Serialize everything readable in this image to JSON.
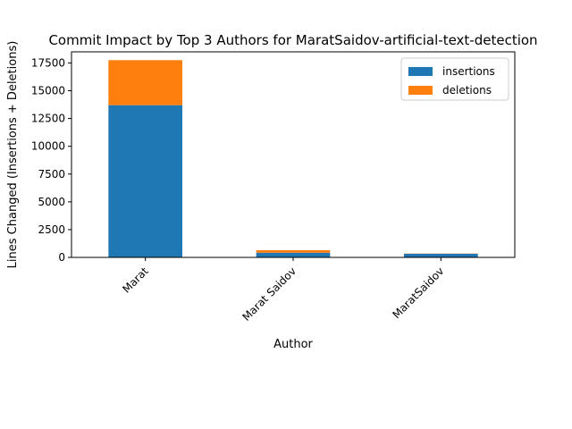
{
  "chart_data": {
    "type": "bar",
    "stacked": true,
    "title": "Commit Impact by Top 3 Authors for MaratSaidov-artificial-text-detection",
    "xlabel": "Author",
    "ylabel": "Lines Changed (Insertions + Deletions)",
    "categories": [
      "Marat",
      "Marat Saidov",
      "MaratSaidov"
    ],
    "series": [
      {
        "name": "insertions",
        "color": "#1f77b4",
        "values": [
          13700,
          420,
          330
        ]
      },
      {
        "name": "deletions",
        "color": "#ff7f0e",
        "values": [
          4050,
          230,
          20
        ]
      }
    ],
    "ylim": [
      0,
      18500
    ],
    "yticks": [
      0,
      2500,
      5000,
      7500,
      10000,
      12500,
      15000,
      17500
    ],
    "ytick_labels": [
      "0",
      "2500",
      "5000",
      "7500",
      "10000",
      "12500",
      "15000",
      "17500"
    ],
    "grid": false,
    "legend_position": "top-right"
  }
}
